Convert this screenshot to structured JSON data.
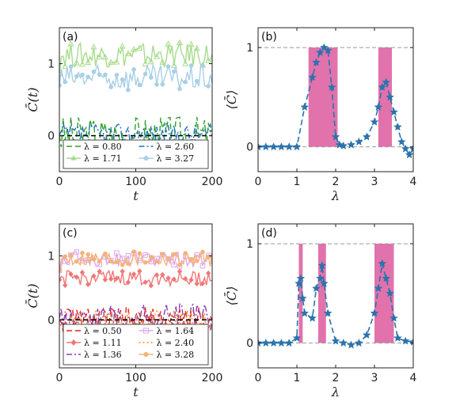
{
  "chart_data": [
    {
      "type": "line",
      "panel_label": "(a)",
      "xlabel": "t",
      "ylabel": "C̄(t)",
      "xlim": [
        0,
        200
      ],
      "ylim": [
        -0.5,
        1.5
      ],
      "xticks": [
        0,
        100,
        200
      ],
      "yticks": [
        0,
        1
      ],
      "reference_line": {
        "y": 0,
        "style": "dashed",
        "color": "#000000"
      },
      "legend_placement": "bottom",
      "series": [
        {
          "name": "λ = 0.80",
          "color": "#2ca02c",
          "style": "dashed",
          "marker": "none",
          "base": 0.0,
          "amp": 0.28
        },
        {
          "name": "λ = 1.71",
          "color": "#a6dc8c",
          "style": "solid",
          "marker": "triangle",
          "base": 1.12,
          "amp": 0.17
        },
        {
          "name": "λ = 2.60",
          "color": "#1f6fb4",
          "style": "dashdot",
          "marker": "none",
          "base": 0.02,
          "amp": 0.15
        },
        {
          "name": "λ = 3.27",
          "color": "#a8d0e6",
          "style": "solid",
          "marker": "circle",
          "base": 0.8,
          "amp": 0.18
        }
      ]
    },
    {
      "type": "line",
      "panel_label": "(b)",
      "xlabel": "λ",
      "ylabel": "⟨C̄⟩",
      "xlim": [
        0,
        4
      ],
      "ylim": [
        -0.25,
        1.2
      ],
      "xticks": [
        0,
        1,
        2,
        3,
        4
      ],
      "yticks": [
        0,
        1
      ],
      "reference_lines": [
        0,
        1
      ],
      "shaded_regions": [
        [
          1.3,
          2.05
        ],
        [
          3.1,
          3.45
        ]
      ],
      "shade_color": "#d94f97",
      "series": [
        {
          "name": "",
          "color": "#2a73ad",
          "style": "dashed",
          "marker": "star",
          "x": [
            0,
            0.2,
            0.4,
            0.6,
            0.8,
            1.0,
            1.2,
            1.4,
            1.5,
            1.6,
            1.7,
            1.8,
            1.9,
            2.0,
            2.1,
            2.2,
            2.4,
            2.6,
            2.8,
            3.0,
            3.1,
            3.2,
            3.3,
            3.4,
            3.5,
            3.6,
            3.7,
            3.8,
            3.9,
            4.0
          ],
          "y": [
            0,
            0,
            0,
            0,
            0,
            0,
            0.4,
            0.7,
            0.85,
            0.95,
            1.0,
            0.97,
            0.6,
            0.1,
            0.02,
            0.01,
            0.02,
            0.05,
            0.1,
            0.25,
            0.4,
            0.6,
            0.65,
            0.5,
            0.35,
            0.2,
            0.05,
            -0.02,
            -0.08,
            -0.02
          ]
        }
      ]
    },
    {
      "type": "line",
      "panel_label": "(c)",
      "xlabel": "t",
      "ylabel": "C̄(t)",
      "xlim": [
        0,
        200
      ],
      "ylim": [
        -0.75,
        1.5
      ],
      "xticks": [
        0,
        100,
        200
      ],
      "yticks": [
        0,
        1
      ],
      "reference_line": {
        "y": 0,
        "style": "dashed",
        "color": "#000000"
      },
      "legend_placement": "bottom",
      "series": [
        {
          "name": "λ = 0.50",
          "color": "#e02020",
          "style": "dashed",
          "marker": "none",
          "base": 0.0,
          "amp": 0.2
        },
        {
          "name": "λ = 1.11",
          "color": "#f07878",
          "style": "solid",
          "marker": "diamond",
          "base": 0.65,
          "amp": 0.12
        },
        {
          "name": "λ = 1.36",
          "color": "#8a3fb0",
          "style": "dashdot",
          "marker": "none",
          "base": 0.05,
          "amp": 0.2
        },
        {
          "name": "λ = 1.64",
          "color": "#e0a8e8",
          "style": "solid",
          "marker": "square",
          "base": 0.95,
          "amp": 0.12
        },
        {
          "name": "λ = 2.40",
          "color": "#ff8a1c",
          "style": "dotted",
          "marker": "none",
          "base": -0.02,
          "amp": 0.18
        },
        {
          "name": "λ = 3.28",
          "color": "#f5b376",
          "style": "solid",
          "marker": "circle",
          "base": 0.95,
          "amp": 0.12
        }
      ]
    },
    {
      "type": "line",
      "panel_label": "(d)",
      "xlabel": "λ",
      "ylabel": "⟨C̄⟩",
      "xlim": [
        0,
        4
      ],
      "ylim": [
        -0.25,
        1.2
      ],
      "xticks": [
        0,
        1,
        2,
        3,
        4
      ],
      "yticks": [
        0,
        1
      ],
      "reference_lines": [
        0,
        1
      ],
      "shaded_regions": [
        [
          1.05,
          1.15
        ],
        [
          1.55,
          1.75
        ],
        [
          3.0,
          3.5
        ]
      ],
      "shade_color": "#d94f97",
      "series": [
        {
          "name": "",
          "color": "#2a73ad",
          "style": "dashed",
          "marker": "star",
          "x": [
            0,
            0.2,
            0.4,
            0.6,
            0.8,
            1.0,
            1.05,
            1.1,
            1.15,
            1.2,
            1.4,
            1.5,
            1.6,
            1.65,
            1.7,
            1.8,
            2.0,
            2.2,
            2.4,
            2.6,
            2.8,
            3.0,
            3.1,
            3.2,
            3.3,
            3.4,
            3.5,
            3.6,
            3.8,
            4.0
          ],
          "y": [
            0,
            0,
            0,
            0,
            0,
            0.05,
            0.6,
            0.65,
            0.45,
            0.3,
            0.25,
            0.55,
            0.65,
            0.78,
            0.6,
            0.3,
            0.02,
            0.0,
            -0.02,
            0.0,
            0.08,
            0.3,
            0.55,
            0.8,
            0.65,
            0.5,
            0.25,
            0.05,
            0.02,
            0.01
          ]
        }
      ]
    }
  ]
}
